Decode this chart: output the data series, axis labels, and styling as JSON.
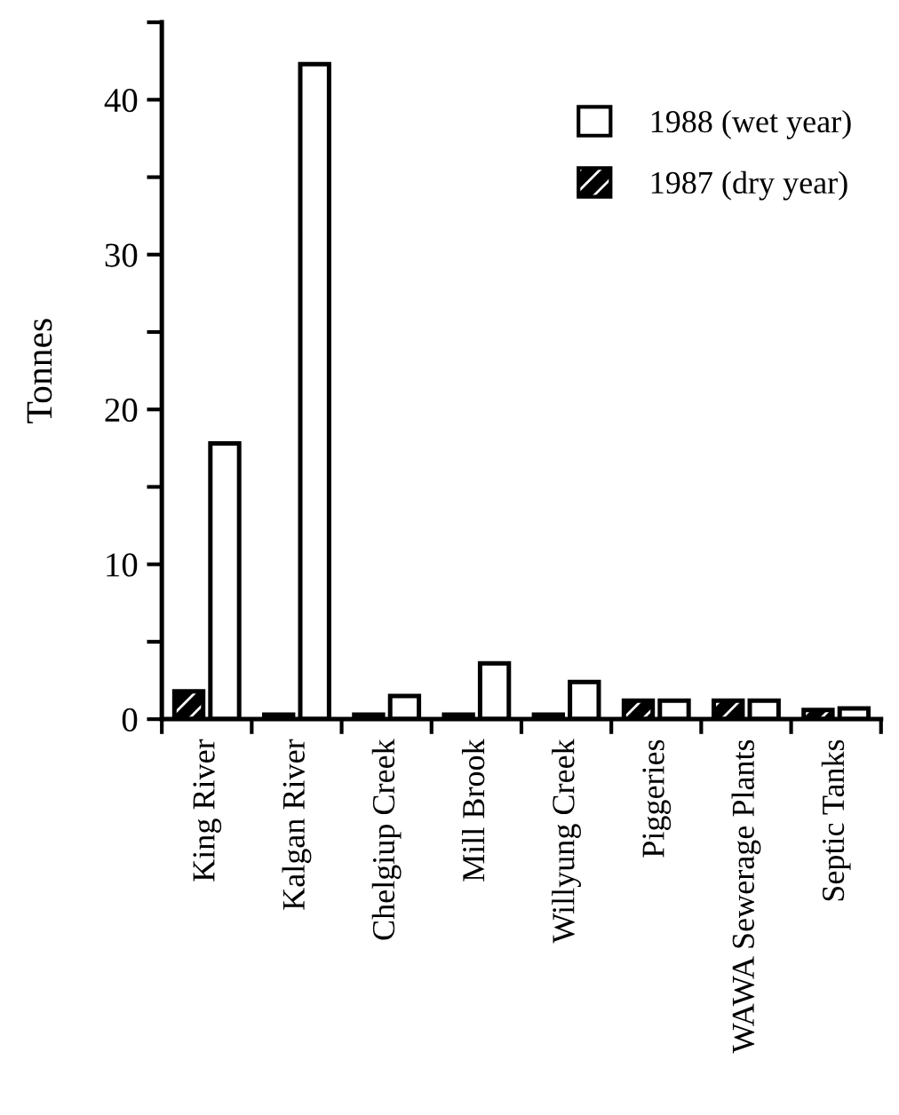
{
  "chart_data": {
    "type": "bar",
    "ylabel": "Tonnes",
    "categories": [
      "King River",
      "Kalgan River",
      "Chelgiup Creek",
      "Mill Brook",
      "Willyung Creek",
      "Piggeries",
      "WAWA Sewerage Plants",
      "Septic Tanks"
    ],
    "series": [
      {
        "name": "1987 (dry year)",
        "color": "#000000",
        "values": [
          1.8,
          0.3,
          0.3,
          0.3,
          0.3,
          1.2,
          1.2,
          0.6
        ]
      },
      {
        "name": "1988 (wet year)",
        "color": "#ffffff",
        "values": [
          17.8,
          42.3,
          1.5,
          3.6,
          2.4,
          1.2,
          1.2,
          0.7
        ]
      }
    ],
    "ylim": [
      0,
      45
    ],
    "yticks": [
      0,
      {
        "value": 5,
        "label": null
      },
      10,
      {
        "value": 15,
        "label": null
      },
      20,
      {
        "value": 25,
        "label": null
      },
      30,
      {
        "value": 35,
        "label": null
      },
      40,
      {
        "value": 45,
        "label": null
      }
    ],
    "grid": false,
    "legend": "top right"
  }
}
